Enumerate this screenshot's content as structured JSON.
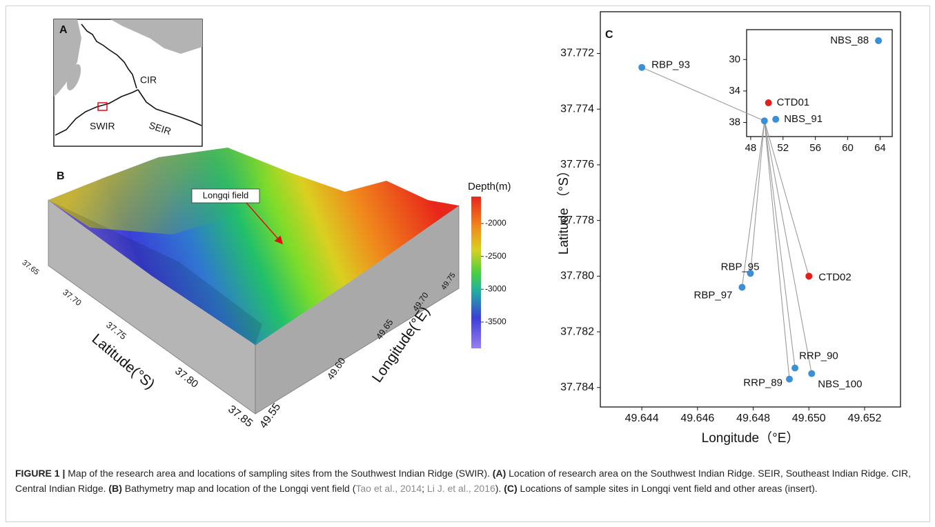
{
  "panel_a": {
    "label": "A",
    "ridge_labels": [
      "CIR",
      "SWIR",
      "SEIR"
    ]
  },
  "panel_b": {
    "label": "B",
    "annotation": "Longqi field",
    "colorbar": {
      "title": "Depth(m)",
      "lim": [
        -3900,
        -1590
      ],
      "ticks": [
        -2000,
        -2500,
        -3000,
        -3500
      ]
    },
    "latitude_ticks": [
      "37.65",
      "37.70",
      "37.75",
      "37.80",
      "37.85"
    ],
    "longitude_ticks": [
      "49.55",
      "49.60",
      "49.65",
      "49.70",
      "49.75"
    ],
    "latitude_label": "Latitude(°S)",
    "longitude_label": "Longitude(°E)"
  },
  "chart_data": [
    {
      "type": "scatter",
      "panel_label": "C",
      "x_label": "Longitude（°E）",
      "y_label": "Latitude （°S）",
      "x": [
        49.644,
        49.6479,
        49.6476,
        49.65,
        49.6495,
        49.6493,
        49.6501
      ],
      "values": [
        37.7725,
        37.7799,
        37.7804,
        37.78,
        37.7833,
        37.7837,
        37.7835
      ],
      "labels": [
        "RBP_93",
        "RBP_95",
        "RBP_97",
        "CTD02",
        "RRP_90",
        "RRP_89",
        "NBS_100"
      ],
      "point_colors": [
        "#3a8fd9",
        "#3a8fd9",
        "#3a8fd9",
        "#e0201b",
        "#3a8fd9",
        "#3a8fd9",
        "#3a8fd9"
      ],
      "xlim": [
        49.64251,
        49.65329
      ],
      "ylim": [
        37.7705,
        37.7847
      ],
      "y_inverted": true,
      "xticks": [
        49.644,
        49.646,
        49.648,
        {
          "value": 49.65,
          "label": "49.650"
        },
        49.652
      ],
      "yticks": [
        37.772,
        37.774,
        37.776,
        37.778,
        {
          "value": 37.78,
          "label": "37.780"
        },
        37.782,
        37.784
      ]
    },
    {
      "type": "scatter",
      "x": [
        63.8,
        50.2,
        51.1,
        49.7
      ],
      "values": [
        27.6,
        35.5,
        37.6,
        37.8
      ],
      "labels": [
        "NBS_88",
        "CTD01",
        "NBS_91",
        null
      ],
      "point_colors": [
        "#3a8fd9",
        "#e0201b",
        "#3a8fd9",
        "#3a8fd9"
      ],
      "xlim": [
        47.5,
        65.5
      ],
      "ylim": [
        26.2,
        39.8
      ],
      "y_inverted": true,
      "xticks": [
        48,
        52,
        56,
        60,
        64
      ],
      "yticks": [
        30,
        34,
        38
      ]
    }
  ],
  "caption": {
    "segments": [
      {
        "text": "FIGURE 1 |",
        "style": "bold"
      },
      {
        "text": " Map of the research area and locations of sampling sites from the Southwest Indian Ridge (SWIR). ",
        "style": "normal"
      },
      {
        "text": "(A)",
        "style": "bold"
      },
      {
        "text": " Location of research area on the Southwest Indian Ridge. SEIR, Southeast Indian Ridge. CIR, Central Indian Ridge. ",
        "style": "normal"
      },
      {
        "text": "(B)",
        "style": "bold"
      },
      {
        "text": " Bathymetry map and location of the Longqi vent field (",
        "style": "normal"
      },
      {
        "text": "Tao et al., 2014",
        "style": "link"
      },
      {
        "text": "; ",
        "style": "normal"
      },
      {
        "text": "Li J. et al., 2016",
        "style": "link"
      },
      {
        "text": "). ",
        "style": "normal"
      },
      {
        "text": "(C)",
        "style": "bold"
      },
      {
        "text": " Locations of sample sites in Longqi vent field and other areas (insert).",
        "style": "normal"
      }
    ]
  }
}
